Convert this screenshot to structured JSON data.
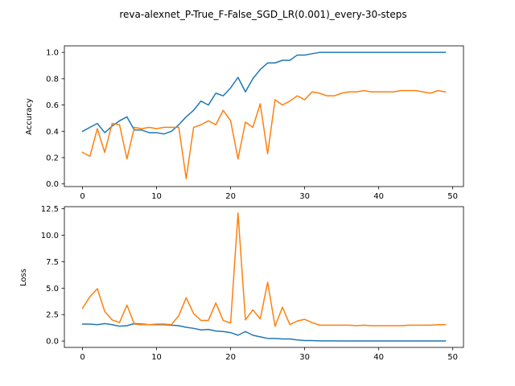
{
  "figure": {
    "title": "reva-alexnet_P-True_F-False_SGD_LR(0.001)_every-30-steps",
    "colors": {
      "series_1": "#1f77b4",
      "series_2": "#ff7f0e",
      "axes": "#000000",
      "background": "#ffffff"
    }
  },
  "chart_data": [
    {
      "type": "line",
      "ylabel": "Accuracy",
      "xlabel": "",
      "xlim": [
        -2.45,
        51.45
      ],
      "ylim": [
        -0.02,
        1.05
      ],
      "xticks": [
        0,
        10,
        20,
        30,
        40,
        50
      ],
      "yticks": [
        0.0,
        0.2,
        0.4,
        0.6,
        0.8,
        1.0
      ],
      "ytick_labels": [
        "0.0",
        "0.2",
        "0.4",
        "0.6",
        "0.8",
        "1.0"
      ],
      "grid": false,
      "legend": "none",
      "x": [
        0,
        1,
        2,
        3,
        4,
        5,
        6,
        7,
        8,
        9,
        10,
        11,
        12,
        13,
        14,
        15,
        16,
        17,
        18,
        19,
        20,
        21,
        22,
        23,
        24,
        25,
        26,
        27,
        28,
        29,
        30,
        31,
        32,
        33,
        34,
        35,
        36,
        37,
        38,
        39,
        40,
        41,
        42,
        43,
        44,
        45,
        46,
        47,
        48,
        49
      ],
      "series": [
        {
          "color": "#1f77b4",
          "values": [
            0.4,
            0.43,
            0.46,
            0.39,
            0.44,
            0.48,
            0.51,
            0.41,
            0.41,
            0.39,
            0.39,
            0.38,
            0.4,
            0.45,
            0.51,
            0.56,
            0.63,
            0.6,
            0.69,
            0.67,
            0.73,
            0.81,
            0.7,
            0.8,
            0.87,
            0.92,
            0.92,
            0.94,
            0.94,
            0.98,
            0.98,
            0.99,
            1.0,
            1.0,
            1.0,
            1.0,
            1.0,
            1.0,
            1.0,
            1.0,
            1.0,
            1.0,
            1.0,
            1.0,
            1.0,
            1.0,
            1.0,
            1.0,
            1.0,
            1.0
          ]
        },
        {
          "color": "#ff7f0e",
          "values": [
            0.24,
            0.21,
            0.42,
            0.24,
            0.46,
            0.45,
            0.19,
            0.43,
            0.42,
            0.43,
            0.42,
            0.43,
            0.43,
            0.43,
            0.04,
            0.43,
            0.45,
            0.48,
            0.45,
            0.56,
            0.48,
            0.19,
            0.47,
            0.43,
            0.61,
            0.23,
            0.64,
            0.6,
            0.63,
            0.67,
            0.64,
            0.7,
            0.69,
            0.67,
            0.67,
            0.69,
            0.7,
            0.7,
            0.71,
            0.7,
            0.7,
            0.7,
            0.7,
            0.71,
            0.71,
            0.71,
            0.7,
            0.69,
            0.71,
            0.7
          ]
        }
      ]
    },
    {
      "type": "line",
      "ylabel": "Loss",
      "xlabel": "",
      "xlim": [
        -2.45,
        51.45
      ],
      "ylim": [
        -0.6,
        12.7
      ],
      "xticks": [
        0,
        10,
        20,
        30,
        40,
        50
      ],
      "yticks": [
        0.0,
        2.5,
        5.0,
        7.5,
        10.0,
        12.5
      ],
      "ytick_labels": [
        "0.0",
        "2.5",
        "5.0",
        "7.5",
        "10.0",
        "12.5"
      ],
      "grid": false,
      "legend": "none",
      "x": [
        0,
        1,
        2,
        3,
        4,
        5,
        6,
        7,
        8,
        9,
        10,
        11,
        12,
        13,
        14,
        15,
        16,
        17,
        18,
        19,
        20,
        21,
        22,
        23,
        24,
        25,
        26,
        27,
        28,
        29,
        30,
        31,
        32,
        33,
        34,
        35,
        36,
        37,
        38,
        39,
        40,
        41,
        42,
        43,
        44,
        45,
        46,
        47,
        48,
        49
      ],
      "series": [
        {
          "color": "#1f77b4",
          "values": [
            1.6,
            1.6,
            1.55,
            1.65,
            1.55,
            1.4,
            1.45,
            1.65,
            1.6,
            1.55,
            1.55,
            1.55,
            1.5,
            1.45,
            1.3,
            1.2,
            1.05,
            1.1,
            0.95,
            0.9,
            0.8,
            0.55,
            0.9,
            0.55,
            0.4,
            0.25,
            0.25,
            0.2,
            0.2,
            0.1,
            0.05,
            0.05,
            0.02,
            0.02,
            0.02,
            0.01,
            0.01,
            0.01,
            0.01,
            0.01,
            0.01,
            0.01,
            0.01,
            0.01,
            0.01,
            0.01,
            0.01,
            0.01,
            0.01,
            0.01
          ]
        },
        {
          "color": "#ff7f0e",
          "values": [
            3.1,
            4.2,
            4.95,
            2.8,
            2.0,
            1.75,
            3.4,
            1.6,
            1.55,
            1.55,
            1.6,
            1.6,
            1.55,
            2.4,
            4.1,
            2.6,
            1.95,
            1.95,
            3.6,
            1.95,
            1.7,
            12.1,
            2.0,
            2.95,
            2.1,
            5.55,
            1.4,
            3.2,
            1.55,
            1.9,
            2.05,
            1.75,
            1.5,
            1.5,
            1.5,
            1.5,
            1.5,
            1.45,
            1.5,
            1.45,
            1.45,
            1.45,
            1.45,
            1.45,
            1.5,
            1.5,
            1.5,
            1.5,
            1.55,
            1.55
          ]
        }
      ]
    }
  ]
}
